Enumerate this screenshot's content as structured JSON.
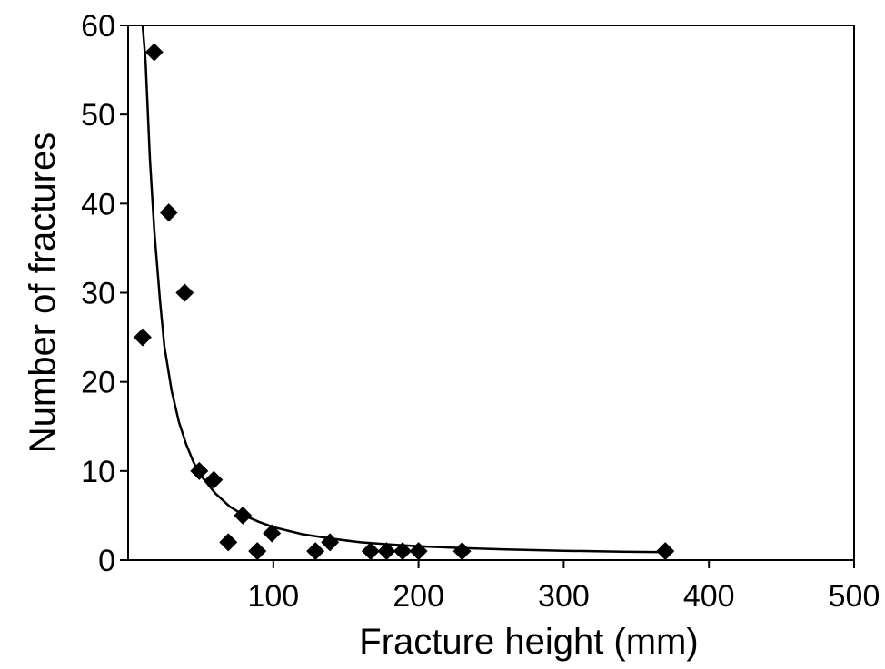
{
  "chart_data": {
    "type": "scatter",
    "title": "",
    "xlabel": "Fracture height (mm)",
    "ylabel": "Number of fractures",
    "xlim": [
      0,
      500
    ],
    "ylim": [
      0,
      60
    ],
    "xticks": [
      100,
      200,
      300,
      400,
      500
    ],
    "xtick_labels": [
      "100",
      "200",
      "300",
      "400",
      "500"
    ],
    "yticks": [
      0,
      10,
      20,
      30,
      40,
      50,
      60
    ],
    "ytick_labels": [
      "0",
      "10",
      "20",
      "30",
      "40",
      "50",
      "60"
    ],
    "grid": false,
    "legend": false,
    "series": [
      {
        "marker": "diamond",
        "color": "#000000",
        "points": [
          {
            "x": 10,
            "y": 25
          },
          {
            "x": 18,
            "y": 57
          },
          {
            "x": 28,
            "y": 39
          },
          {
            "x": 39,
            "y": 30
          },
          {
            "x": 49,
            "y": 10
          },
          {
            "x": 59,
            "y": 9
          },
          {
            "x": 69,
            "y": 2
          },
          {
            "x": 79,
            "y": 5
          },
          {
            "x": 89,
            "y": 1
          },
          {
            "x": 99,
            "y": 3
          },
          {
            "x": 129,
            "y": 1
          },
          {
            "x": 139,
            "y": 2
          },
          {
            "x": 167,
            "y": 1
          },
          {
            "x": 178,
            "y": 1
          },
          {
            "x": 189,
            "y": 1
          },
          {
            "x": 200,
            "y": 1
          },
          {
            "x": 230,
            "y": 1
          },
          {
            "x": 370,
            "y": 1
          }
        ]
      }
    ],
    "trendline": {
      "type": "power",
      "color": "#000000",
      "points": [
        {
          "x": 10,
          "y": 60
        },
        {
          "x": 12,
          "y": 56
        },
        {
          "x": 15,
          "y": 45
        },
        {
          "x": 18,
          "y": 37
        },
        {
          "x": 22,
          "y": 29
        },
        {
          "x": 25,
          "y": 24
        },
        {
          "x": 30,
          "y": 19
        },
        {
          "x": 35,
          "y": 15.5
        },
        {
          "x": 40,
          "y": 13
        },
        {
          "x": 45,
          "y": 11
        },
        {
          "x": 50,
          "y": 9.5
        },
        {
          "x": 60,
          "y": 7.5
        },
        {
          "x": 70,
          "y": 6
        },
        {
          "x": 80,
          "y": 5
        },
        {
          "x": 90,
          "y": 4.3
        },
        {
          "x": 100,
          "y": 3.7
        },
        {
          "x": 120,
          "y": 2.9
        },
        {
          "x": 140,
          "y": 2.4
        },
        {
          "x": 160,
          "y": 2.0
        },
        {
          "x": 180,
          "y": 1.75
        },
        {
          "x": 200,
          "y": 1.55
        },
        {
          "x": 230,
          "y": 1.35
        },
        {
          "x": 260,
          "y": 1.2
        },
        {
          "x": 300,
          "y": 1.05
        },
        {
          "x": 340,
          "y": 0.95
        },
        {
          "x": 370,
          "y": 0.9
        }
      ]
    }
  }
}
